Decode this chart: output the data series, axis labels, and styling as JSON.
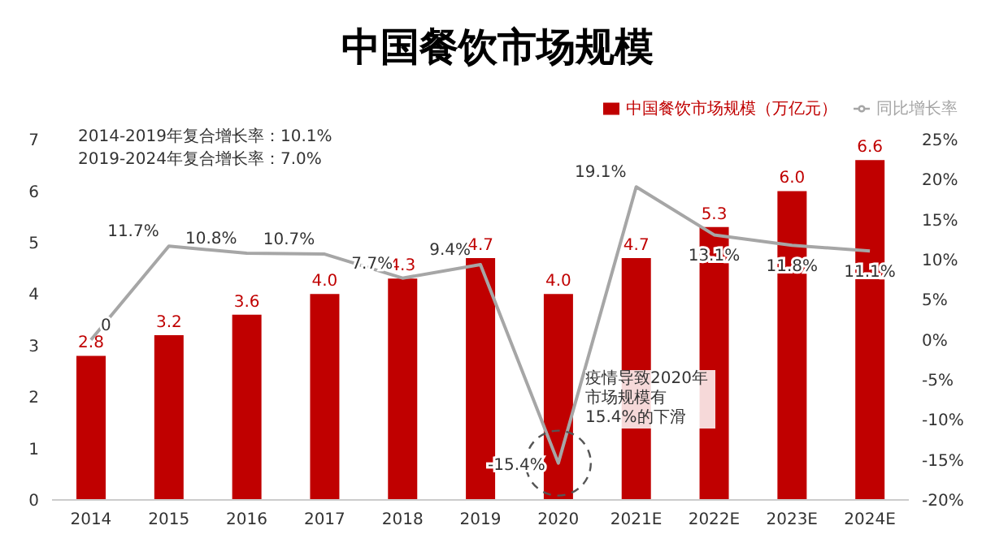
{
  "chart_data": {
    "type": "bar",
    "title": "中国餐饮市场规模",
    "categories": [
      "2014",
      "2015",
      "2016",
      "2017",
      "2018",
      "2019",
      "2020",
      "2021E",
      "2022E",
      "2023E",
      "2024E"
    ],
    "series": [
      {
        "name": "中国餐饮市场规模（万亿元）",
        "color": "#c00000",
        "values": [
          2.8,
          3.2,
          3.6,
          4.0,
          4.3,
          4.7,
          4.0,
          4.7,
          5.3,
          6.0,
          6.6
        ],
        "value_labels": [
          "2.8",
          "3.2",
          "3.6",
          "4.0",
          "4.3",
          "4.7",
          "4.0",
          "4.7",
          "5.3",
          "6.0",
          "6.6"
        ]
      },
      {
        "name": "同比增长率",
        "type": "line",
        "axis": "y2",
        "color": "#a6a6a6",
        "values": [
          0,
          11.7,
          10.8,
          10.7,
          7.7,
          9.4,
          -15.4,
          19.1,
          13.1,
          11.8,
          11.1
        ],
        "value_labels": [
          "0",
          "11.7%",
          "10.8%",
          "10.7%",
          "7.7%",
          "9.4%",
          "-15.4%",
          "19.1%",
          "13.1%",
          "11.8%",
          "11.1%"
        ]
      }
    ],
    "ylim": [
      0,
      7
    ],
    "yticks": [
      0,
      1,
      2,
      3,
      4,
      5,
      6,
      7
    ],
    "y2lim": [
      -20,
      25
    ],
    "y2ticks": [
      {
        "value": -20,
        "label": "-20%"
      },
      {
        "value": -15,
        "label": "-15%"
      },
      {
        "value": -10,
        "label": "-10%"
      },
      {
        "value": -5,
        "label": "-5%"
      },
      {
        "value": 0,
        "label": "0%"
      },
      {
        "value": 5,
        "label": "5%"
      },
      {
        "value": 10,
        "label": "10%"
      },
      {
        "value": 15,
        "label": "15%"
      },
      {
        "value": 20,
        "label": "20%"
      },
      {
        "value": 25,
        "label": "25%"
      }
    ],
    "annotations": [
      "2014-2019年复合增长率：10.1%",
      "2019-2024年复合增长率：7.0%",
      "疫情导致2020年市场规模有15.4%的下滑"
    ],
    "grid": false,
    "legend": "top right",
    "marker": "none",
    "line_style": "solid"
  }
}
